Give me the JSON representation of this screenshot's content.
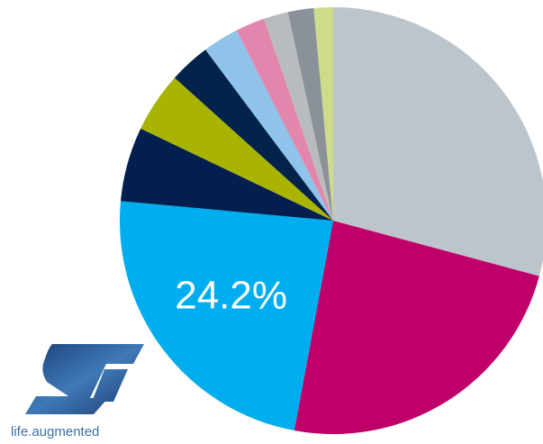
{
  "chart_data": {
    "type": "pie",
    "categories": [
      null,
      null,
      null,
      null,
      null,
      null,
      null,
      null,
      null,
      null,
      null
    ],
    "values": [
      30,
      24.4,
      24.2,
      5.8,
      4.7,
      3.2,
      2.8,
      2.3,
      1.9,
      2.0,
      1.5
    ],
    "value_labels": [
      null,
      null,
      "24.2%",
      null,
      null,
      null,
      null,
      null,
      null,
      null,
      null
    ],
    "colors": [
      "#bcc5cc",
      "#bf006a",
      "#00aeef",
      "#041e4f",
      "#a8b400",
      "#03234b",
      "#8fc3ea",
      "#e386ad",
      "#b9bcbe",
      "#8b9199",
      "#cddc8a"
    ]
  },
  "logo": {
    "caption": "life.augmented"
  }
}
